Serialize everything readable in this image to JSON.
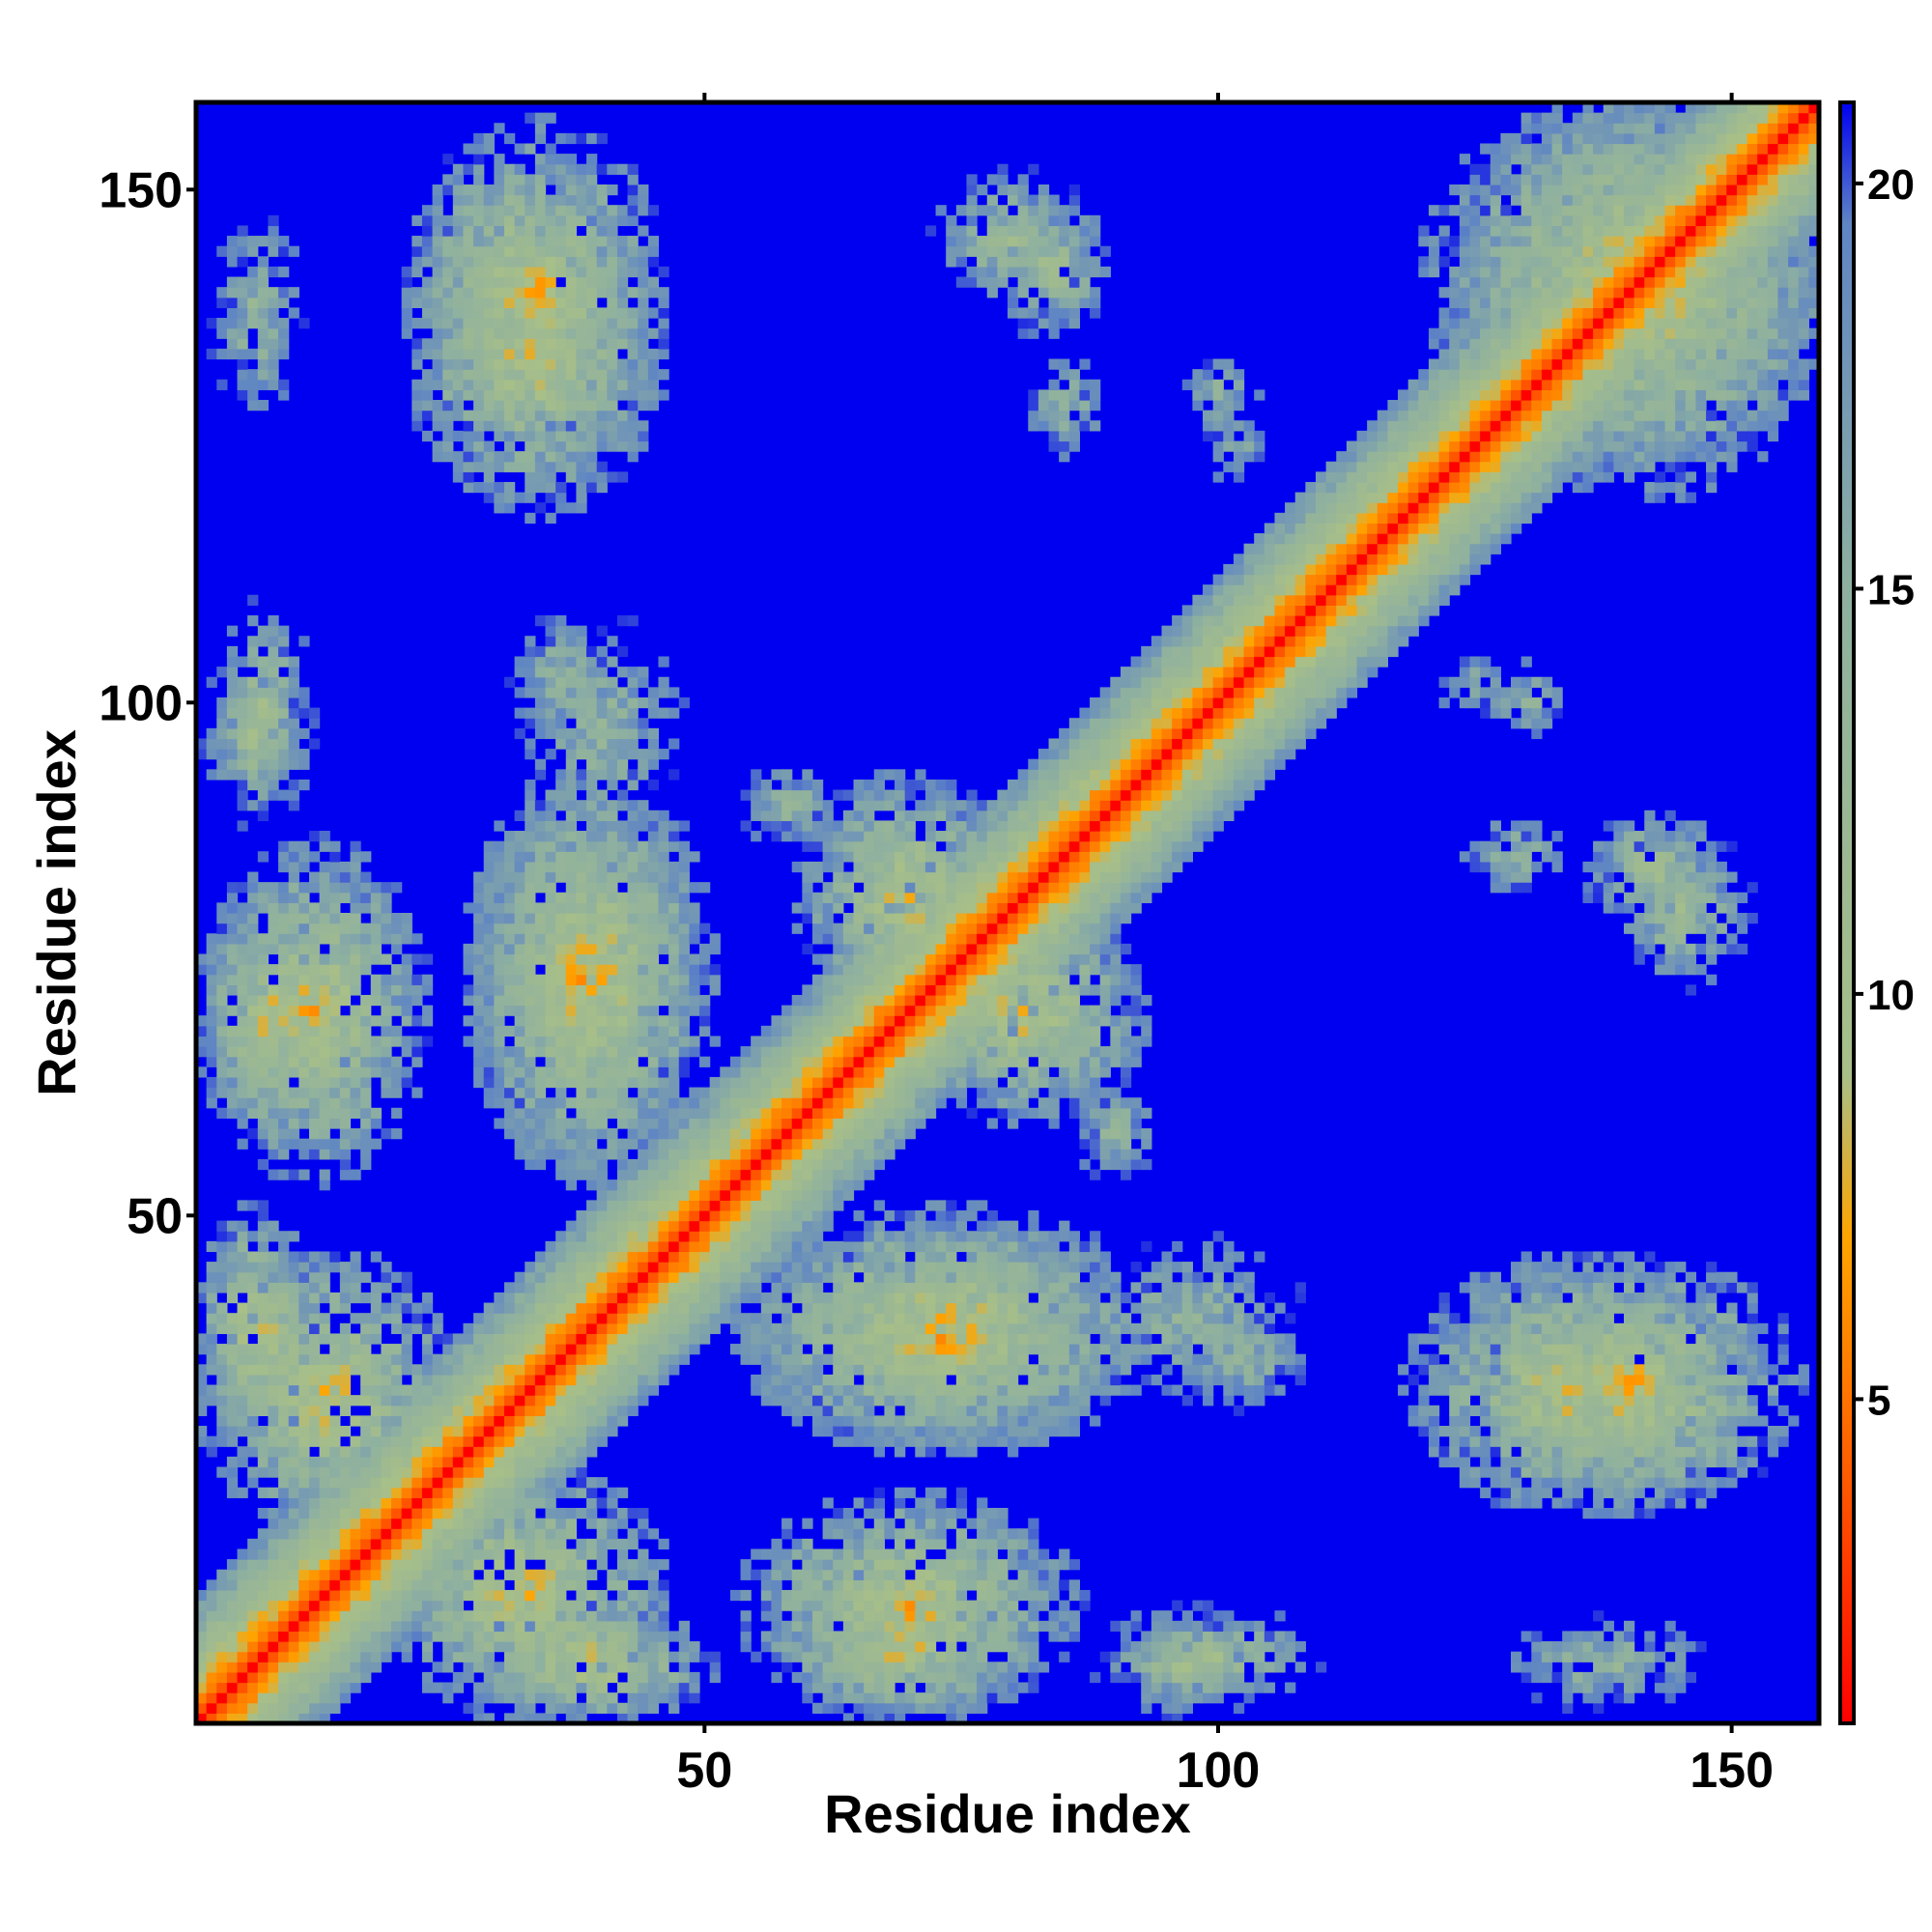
{
  "chart_data": {
    "type": "heatmap",
    "title": "",
    "xlabel": "Residue index",
    "ylabel": "Residue index",
    "n_residues": 158,
    "xlim": [
      1,
      158
    ],
    "ylim": [
      1,
      158
    ],
    "x_ticks": [
      50,
      100,
      150
    ],
    "y_ticks": [
      50,
      100,
      150
    ],
    "x_tick_labels": [
      "50",
      "100",
      "150"
    ],
    "y_tick_labels": [
      "50",
      "100",
      "150"
    ],
    "colorbar": {
      "range": [
        1,
        21
      ],
      "ticks": [
        5,
        10,
        15,
        20
      ],
      "tick_labels": [
        "5",
        "10",
        "15",
        "20"
      ]
    },
    "colors": {
      "background": "#0000f0",
      "stops": [
        {
          "value": 1,
          "color": "#ff0000"
        },
        {
          "value": 4,
          "color": "#ff5a00"
        },
        {
          "value": 7,
          "color": "#ffa500"
        },
        {
          "value": 9,
          "color": "#a8bf88"
        },
        {
          "value": 15,
          "color": "#8eb0a0"
        },
        {
          "value": 19.5,
          "color": "#5f85c4"
        },
        {
          "value": 21,
          "color": "#0000f0"
        }
      ]
    },
    "diagonal_band": {
      "mean_distance_by_offset": [
        {
          "offset": 0,
          "value": 1
        },
        {
          "offset": 1,
          "value": 3.8
        },
        {
          "offset": 2,
          "value": 5.5
        },
        {
          "offset": 3,
          "value": 7
        },
        {
          "offset": 4,
          "value": 8.5
        },
        {
          "offset": 6,
          "value": 11
        },
        {
          "offset": 9,
          "value": 14.5
        },
        {
          "offset": 12,
          "value": 18
        }
      ]
    },
    "contact_clusters": [
      {
        "x_range": [
          1,
          12
        ],
        "y_range": [
          28,
          50
        ],
        "min_value": 5
      },
      {
        "x_range": [
          1,
          15
        ],
        "y_range": [
          58,
          80
        ],
        "min_value": 5
      },
      {
        "x_range": [
          1,
          12
        ],
        "y_range": [
          88,
          105
        ],
        "min_value": 8
      },
      {
        "x_range": [
          1,
          12
        ],
        "y_range": [
          125,
          150
        ],
        "min_value": 10
      },
      {
        "x_range": [
          20,
          45
        ],
        "y_range": [
          2,
          25
        ],
        "min_value": 5
      },
      {
        "x_range": [
          28,
          48
        ],
        "y_range": [
          55,
          90
        ],
        "min_value": 5
      },
      {
        "x_range": [
          30,
          42
        ],
        "y_range": [
          95,
          110
        ],
        "min_value": 10
      },
      {
        "x_range": [
          22,
          45
        ],
        "y_range": [
          125,
          155
        ],
        "min_value": 5
      },
      {
        "x_range": [
          55,
          85
        ],
        "y_range": [
          2,
          22
        ],
        "min_value": 5
      },
      {
        "x_range": [
          55,
          92
        ],
        "y_range": [
          28,
          50
        ],
        "min_value": 5
      },
      {
        "x_range": [
          60,
          80
        ],
        "y_range": [
          70,
          92
        ],
        "min_value": 5
      },
      {
        "x_range": [
          52,
          65
        ],
        "y_range": [
          85,
          95
        ],
        "min_value": 10
      },
      {
        "x_range": [
          85,
          110
        ],
        "y_range": [
          30,
          50
        ],
        "min_value": 10
      },
      {
        "x_range": [
          90,
          110
        ],
        "y_range": [
          2,
          12
        ],
        "min_value": 8
      },
      {
        "x_range": [
          72,
          88
        ],
        "y_range": [
          138,
          152
        ],
        "min_value": 8
      },
      {
        "x_range": [
          95,
          105
        ],
        "y_range": [
          125,
          135
        ],
        "min_value": 10
      },
      {
        "x_range": [
          120,
          150
        ],
        "y_range": [
          22,
          45
        ],
        "min_value": 5
      },
      {
        "x_range": [
          135,
          150
        ],
        "y_range": [
          78,
          90
        ],
        "min_value": 8
      },
      {
        "x_range": [
          122,
          135
        ],
        "y_range": [
          80,
          90
        ],
        "min_value": 10
      },
      {
        "x_range": [
          120,
          130
        ],
        "y_range": [
          98,
          105
        ],
        "min_value": 10
      },
      {
        "x_range": [
          122,
          158
        ],
        "y_range": [
          125,
          158
        ],
        "min_value": 5
      }
    ]
  }
}
